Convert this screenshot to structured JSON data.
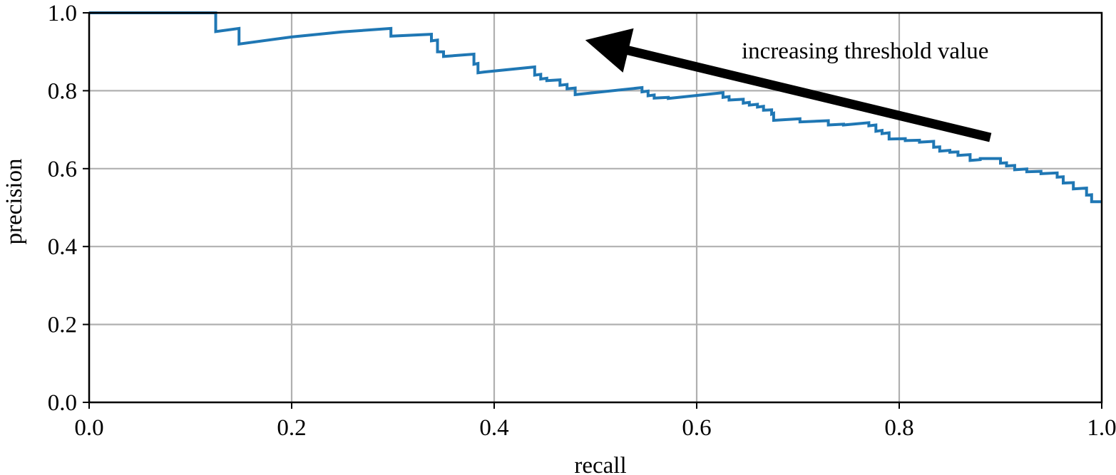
{
  "chart_data": {
    "type": "line",
    "title": "",
    "xlabel": "recall",
    "ylabel": "precision",
    "xlim": [
      0.0,
      1.0
    ],
    "ylim": [
      0.0,
      1.0
    ],
    "x_ticks": [
      "0.0",
      "0.2",
      "0.4",
      "0.6",
      "0.8",
      "1.0"
    ],
    "y_ticks": [
      "0.0",
      "0.2",
      "0.4",
      "0.6",
      "0.8",
      "1.0"
    ],
    "grid": true,
    "line_color": "#1f77b4",
    "annotation": {
      "text": "increasing threshold value",
      "arrow_from": {
        "x": 0.89,
        "y": 0.68
      },
      "arrow_to": {
        "x": 0.49,
        "y": 0.93
      }
    },
    "series": [
      {
        "x": [
          0.0,
          0.125,
          0.125,
          0.148,
          0.148,
          0.2,
          0.25,
          0.298,
          0.298,
          0.338,
          0.338,
          0.344,
          0.344,
          0.35,
          0.35,
          0.38,
          0.38,
          0.384,
          0.384,
          0.39,
          0.39,
          0.44,
          0.44,
          0.446,
          0.446,
          0.452,
          0.452,
          0.465,
          0.465,
          0.472,
          0.472,
          0.48,
          0.48,
          0.546,
          0.546,
          0.552,
          0.552,
          0.558,
          0.558,
          0.572,
          0.572,
          0.626,
          0.626,
          0.632,
          0.632,
          0.646,
          0.646,
          0.652,
          0.652,
          0.66,
          0.66,
          0.666,
          0.666,
          0.674,
          0.674,
          0.676,
          0.676,
          0.702,
          0.702,
          0.73,
          0.73,
          0.745,
          0.745,
          0.77,
          0.77,
          0.777,
          0.777,
          0.783,
          0.783,
          0.79,
          0.79,
          0.806,
          0.806,
          0.82,
          0.82,
          0.834,
          0.834,
          0.84,
          0.84,
          0.85,
          0.85,
          0.858,
          0.858,
          0.87,
          0.87,
          0.88,
          0.88,
          0.9,
          0.9,
          0.906,
          0.906,
          0.914,
          0.914,
          0.926,
          0.926,
          0.94,
          0.94,
          0.956,
          0.956,
          0.962,
          0.962,
          0.972,
          0.972,
          0.985,
          0.985,
          0.99,
          0.99,
          1.0
        ],
        "y": [
          1.0,
          1.0,
          0.952,
          0.96,
          0.92,
          0.938,
          0.951,
          0.96,
          0.94,
          0.945,
          0.928,
          0.93,
          0.9,
          0.9,
          0.888,
          0.894,
          0.868,
          0.87,
          0.846,
          0.848,
          0.848,
          0.861,
          0.84,
          0.842,
          0.83,
          0.832,
          0.826,
          0.828,
          0.814,
          0.816,
          0.805,
          0.807,
          0.79,
          0.808,
          0.797,
          0.799,
          0.787,
          0.789,
          0.781,
          0.783,
          0.78,
          0.795,
          0.783,
          0.785,
          0.776,
          0.778,
          0.768,
          0.77,
          0.763,
          0.765,
          0.758,
          0.76,
          0.75,
          0.751,
          0.74,
          0.742,
          0.724,
          0.728,
          0.72,
          0.723,
          0.712,
          0.714,
          0.712,
          0.718,
          0.71,
          0.712,
          0.696,
          0.698,
          0.69,
          0.692,
          0.676,
          0.677,
          0.672,
          0.673,
          0.668,
          0.67,
          0.655,
          0.656,
          0.645,
          0.647,
          0.642,
          0.643,
          0.634,
          0.636,
          0.621,
          0.623,
          0.626,
          0.626,
          0.614,
          0.615,
          0.607,
          0.608,
          0.597,
          0.599,
          0.592,
          0.593,
          0.587,
          0.589,
          0.578,
          0.579,
          0.563,
          0.564,
          0.548,
          0.55,
          0.532,
          0.533,
          0.515,
          0.515
        ]
      }
    ]
  }
}
